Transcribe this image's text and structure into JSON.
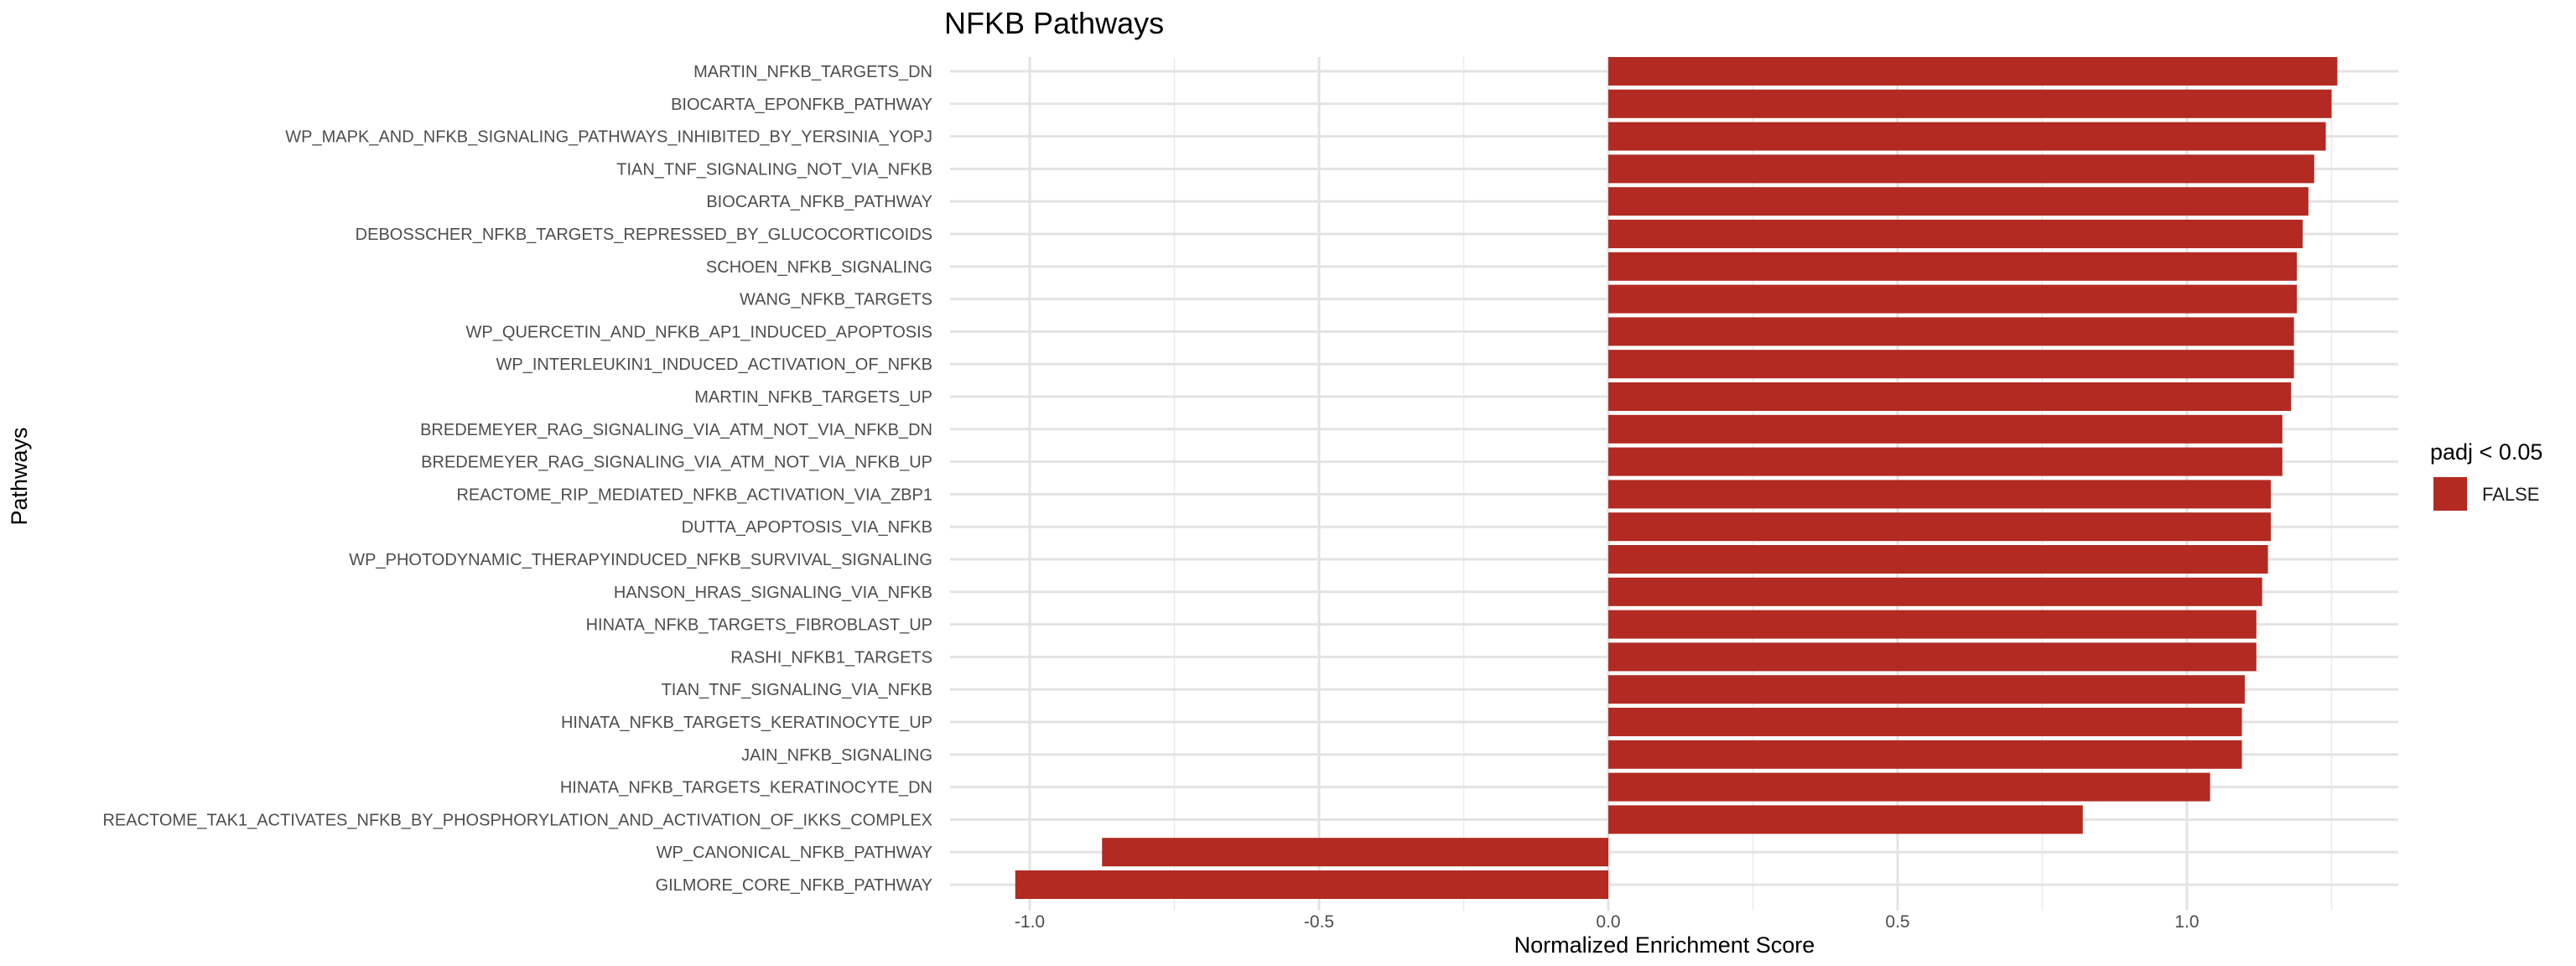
{
  "chart_data": {
    "type": "bar",
    "orientation": "horizontal",
    "title": "NFKB Pathways",
    "xlabel": "Normalized Enrichment Score",
    "ylabel": "Pathways",
    "xlim": [
      -1.06,
      1.38
    ],
    "xticks": [
      -1.0,
      -0.5,
      0.0,
      0.5,
      1.0
    ],
    "xtick_labels": [
      "-1.0",
      "-0.5",
      "0.0",
      "0.5",
      "1.0"
    ],
    "grid": true,
    "bar_color": "#B22A22",
    "legend": {
      "title": "padj < 0.05",
      "position": "right",
      "entries": [
        {
          "label": "FALSE",
          "color": "#B22A22"
        }
      ]
    },
    "categories": [
      "MARTIN_NFKB_TARGETS_DN",
      "BIOCARTA_EPONFKB_PATHWAY",
      "WP_MAPK_AND_NFKB_SIGNALING_PATHWAYS_INHIBITED_BY_YERSINIA_YOPJ",
      "TIAN_TNF_SIGNALING_NOT_VIA_NFKB",
      "BIOCARTA_NFKB_PATHWAY",
      "DEBOSSCHER_NFKB_TARGETS_REPRESSED_BY_GLUCOCORTICOIDS",
      "SCHOEN_NFKB_SIGNALING",
      "WANG_NFKB_TARGETS",
      "WP_QUERCETIN_AND_NFKB_AP1_INDUCED_APOPTOSIS",
      "WP_INTERLEUKIN1_INDUCED_ACTIVATION_OF_NFKB",
      "MARTIN_NFKB_TARGETS_UP",
      "BREDEMEYER_RAG_SIGNALING_VIA_ATM_NOT_VIA_NFKB_DN",
      "BREDEMEYER_RAG_SIGNALING_VIA_ATM_NOT_VIA_NFKB_UP",
      "REACTOME_RIP_MEDIATED_NFKB_ACTIVATION_VIA_ZBP1",
      "DUTTA_APOPTOSIS_VIA_NFKB",
      "WP_PHOTODYNAMIC_THERAPYINDUCED_NFKB_SURVIVAL_SIGNALING",
      "HANSON_HRAS_SIGNALING_VIA_NFKB",
      "HINATA_NFKB_TARGETS_FIBROBLAST_UP",
      "RASHI_NFKB1_TARGETS",
      "TIAN_TNF_SIGNALING_VIA_NFKB",
      "HINATA_NFKB_TARGETS_KERATINOCYTE_UP",
      "JAIN_NFKB_SIGNALING",
      "HINATA_NFKB_TARGETS_KERATINOCYTE_DN",
      "REACTOME_TAK1_ACTIVATES_NFKB_BY_PHOSPHORYLATION_AND_ACTIVATION_OF_IKKS_COMPLEX",
      "WP_CANONICAL_NFKB_PATHWAY",
      "GILMORE_CORE_NFKB_PATHWAY"
    ],
    "values": [
      1.26,
      1.25,
      1.24,
      1.22,
      1.21,
      1.2,
      1.19,
      1.19,
      1.185,
      1.185,
      1.18,
      1.165,
      1.165,
      1.145,
      1.145,
      1.14,
      1.13,
      1.12,
      1.12,
      1.1,
      1.095,
      1.095,
      1.04,
      0.82,
      -0.875,
      -1.025
    ]
  }
}
